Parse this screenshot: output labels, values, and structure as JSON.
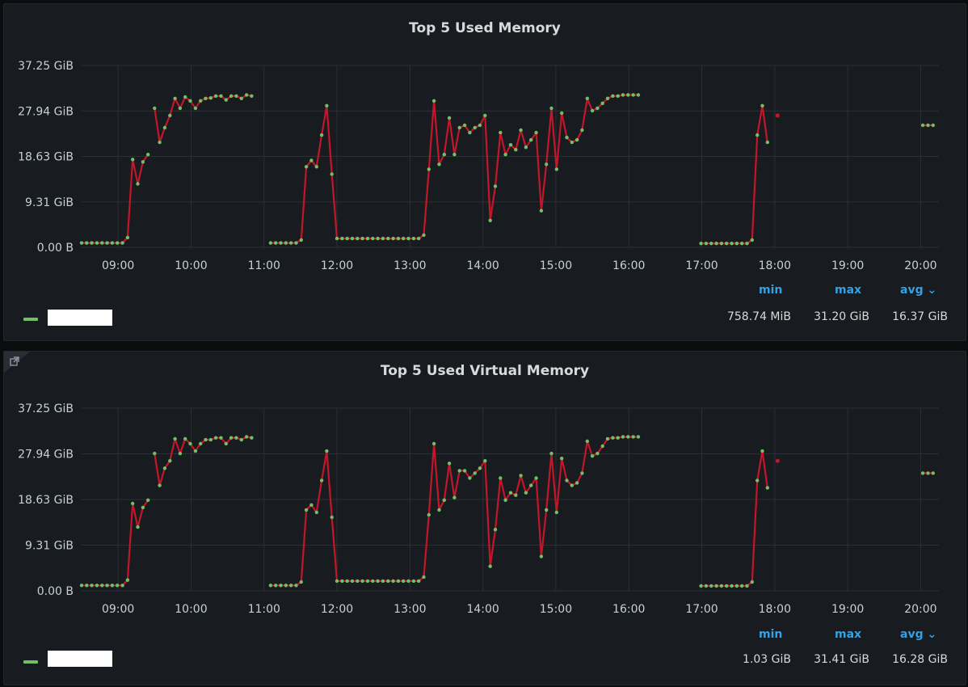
{
  "colors": {
    "line": "#c4162a",
    "point": "#73bf69",
    "grid": "#2c3035",
    "accent": "#33a2e5",
    "panel": "#181b1f"
  },
  "icons": {
    "panel_link": "external-link-icon",
    "avg_sort": "chevron-down-icon"
  },
  "panels": [
    {
      "title": "Top 5 Used Memory",
      "legend": {
        "headers": {
          "min": "min",
          "max": "max",
          "avg": "avg ⌄"
        },
        "values": {
          "min": "758.74 MiB",
          "max": "31.20 GiB",
          "avg": "16.37 GiB"
        },
        "series_name": ""
      }
    },
    {
      "title": "Top 5 Used Virtual Memory",
      "legend": {
        "headers": {
          "min": "min",
          "max": "max",
          "avg": "avg ⌄"
        },
        "values": {
          "min": "1.03 GiB",
          "max": "31.41 GiB",
          "avg": "16.28 GiB"
        },
        "series_name": ""
      }
    }
  ],
  "chart_data": [
    {
      "type": "line",
      "title": "Top 5 Used Memory",
      "x_ticks": [
        "09:00",
        "10:00",
        "11:00",
        "12:00",
        "13:00",
        "14:00",
        "15:00",
        "16:00",
        "17:00",
        "18:00",
        "19:00",
        "20:00"
      ],
      "y_ticks": [
        "0.00 B",
        "9.31 GiB",
        "18.63 GiB",
        "27.94 GiB",
        "37.25 GiB"
      ],
      "ylim": [
        0,
        37.25
      ],
      "x_unit": "hours",
      "grid": true,
      "legend_placement": "bottom",
      "segments": [
        [
          [
            8.5,
            0.9
          ],
          [
            8.57,
            0.9
          ],
          [
            8.64,
            0.9
          ],
          [
            8.71,
            0.9
          ],
          [
            8.78,
            0.9
          ],
          [
            8.85,
            0.9
          ],
          [
            8.92,
            0.9
          ],
          [
            8.99,
            0.9
          ],
          [
            9.06,
            0.9
          ],
          [
            9.13,
            2.0
          ],
          [
            9.2,
            18.0
          ],
          [
            9.27,
            13.0
          ],
          [
            9.34,
            17.5
          ],
          [
            9.41,
            19.0
          ]
        ],
        [
          [
            9.5,
            28.5
          ],
          [
            9.57,
            21.5
          ],
          [
            9.64,
            24.5
          ],
          [
            9.71,
            27.0
          ],
          [
            9.78,
            30.5
          ],
          [
            9.85,
            28.5
          ],
          [
            9.92,
            30.8
          ],
          [
            9.99,
            30.0
          ],
          [
            10.06,
            28.5
          ],
          [
            10.13,
            30.0
          ],
          [
            10.2,
            30.5
          ],
          [
            10.27,
            30.6
          ],
          [
            10.34,
            31.0
          ],
          [
            10.41,
            31.0
          ],
          [
            10.48,
            30.2
          ],
          [
            10.55,
            31.0
          ],
          [
            10.62,
            31.0
          ],
          [
            10.69,
            30.5
          ],
          [
            10.76,
            31.2
          ],
          [
            10.83,
            31.0
          ]
        ],
        [
          [
            11.09,
            0.9
          ],
          [
            11.16,
            0.9
          ],
          [
            11.23,
            0.9
          ],
          [
            11.3,
            0.9
          ],
          [
            11.37,
            0.9
          ],
          [
            11.44,
            0.9
          ],
          [
            11.51,
            1.5
          ],
          [
            11.58,
            16.5
          ],
          [
            11.65,
            17.8
          ],
          [
            11.72,
            16.5
          ],
          [
            11.79,
            23.0
          ],
          [
            11.86,
            29.0
          ],
          [
            11.93,
            15.0
          ],
          [
            12.0,
            1.8
          ],
          [
            12.07,
            1.8
          ],
          [
            12.14,
            1.8
          ],
          [
            12.21,
            1.8
          ],
          [
            12.28,
            1.8
          ],
          [
            12.35,
            1.8
          ],
          [
            12.42,
            1.8
          ],
          [
            12.49,
            1.8
          ],
          [
            12.56,
            1.8
          ],
          [
            12.63,
            1.8
          ],
          [
            12.7,
            1.8
          ],
          [
            12.77,
            1.8
          ],
          [
            12.84,
            1.8
          ],
          [
            12.91,
            1.8
          ],
          [
            12.98,
            1.8
          ],
          [
            13.05,
            1.8
          ],
          [
            13.12,
            1.8
          ],
          [
            13.19,
            2.5
          ],
          [
            13.26,
            16.0
          ],
          [
            13.33,
            30.0
          ],
          [
            13.4,
            17.0
          ],
          [
            13.47,
            19.0
          ],
          [
            13.54,
            26.5
          ],
          [
            13.61,
            19.0
          ],
          [
            13.68,
            24.5
          ],
          [
            13.75,
            25.0
          ],
          [
            13.82,
            23.5
          ],
          [
            13.89,
            24.5
          ],
          [
            13.96,
            25.0
          ],
          [
            14.03,
            27.0
          ],
          [
            14.1,
            5.5
          ],
          [
            14.17,
            12.5
          ],
          [
            14.24,
            23.5
          ],
          [
            14.31,
            19.0
          ],
          [
            14.38,
            21.0
          ],
          [
            14.45,
            20.0
          ],
          [
            14.52,
            24.0
          ],
          [
            14.59,
            20.5
          ],
          [
            14.66,
            22.0
          ],
          [
            14.73,
            23.5
          ],
          [
            14.8,
            7.5
          ],
          [
            14.87,
            17.0
          ],
          [
            14.94,
            28.5
          ],
          [
            15.01,
            16.0
          ],
          [
            15.08,
            27.5
          ],
          [
            15.15,
            22.5
          ],
          [
            15.22,
            21.5
          ],
          [
            15.29,
            22.0
          ],
          [
            15.36,
            24.0
          ],
          [
            15.43,
            30.5
          ],
          [
            15.5,
            28.0
          ],
          [
            15.57,
            28.5
          ],
          [
            15.64,
            29.5
          ],
          [
            15.71,
            30.5
          ],
          [
            15.78,
            31.0
          ],
          [
            15.85,
            31.0
          ],
          [
            15.92,
            31.2
          ],
          [
            15.99,
            31.2
          ],
          [
            16.06,
            31.2
          ],
          [
            16.13,
            31.2
          ]
        ],
        [
          [
            16.99,
            0.8
          ],
          [
            17.06,
            0.8
          ],
          [
            17.13,
            0.8
          ],
          [
            17.2,
            0.8
          ],
          [
            17.27,
            0.8
          ],
          [
            17.34,
            0.8
          ],
          [
            17.41,
            0.8
          ],
          [
            17.48,
            0.8
          ],
          [
            17.55,
            0.8
          ],
          [
            17.62,
            0.8
          ],
          [
            17.69,
            1.5
          ],
          [
            17.76,
            23.0
          ],
          [
            17.83,
            29.0
          ],
          [
            17.9,
            21.5
          ]
        ],
        [
          [
            18.04,
            27.0
          ]
        ],
        [
          [
            20.03,
            25.0
          ],
          [
            20.1,
            25.0
          ],
          [
            20.17,
            25.0
          ]
        ]
      ]
    },
    {
      "type": "line",
      "title": "Top 5 Used Virtual Memory",
      "x_ticks": [
        "09:00",
        "10:00",
        "11:00",
        "12:00",
        "13:00",
        "14:00",
        "15:00",
        "16:00",
        "17:00",
        "18:00",
        "19:00",
        "20:00"
      ],
      "y_ticks": [
        "0.00 B",
        "9.31 GiB",
        "18.63 GiB",
        "27.94 GiB",
        "37.25 GiB"
      ],
      "ylim": [
        0,
        37.25
      ],
      "x_unit": "hours",
      "grid": true,
      "legend_placement": "bottom",
      "segments": [
        [
          [
            8.5,
            1.1
          ],
          [
            8.57,
            1.1
          ],
          [
            8.64,
            1.1
          ],
          [
            8.71,
            1.1
          ],
          [
            8.78,
            1.1
          ],
          [
            8.85,
            1.1
          ],
          [
            8.92,
            1.1
          ],
          [
            8.99,
            1.1
          ],
          [
            9.06,
            1.1
          ],
          [
            9.13,
            2.2
          ],
          [
            9.2,
            17.8
          ],
          [
            9.27,
            13.0
          ],
          [
            9.34,
            17.0
          ],
          [
            9.41,
            18.5
          ]
        ],
        [
          [
            9.5,
            28.0
          ],
          [
            9.57,
            21.5
          ],
          [
            9.64,
            25.0
          ],
          [
            9.71,
            26.5
          ],
          [
            9.78,
            31.0
          ],
          [
            9.85,
            28.0
          ],
          [
            9.92,
            31.0
          ],
          [
            9.99,
            30.0
          ],
          [
            10.06,
            28.5
          ],
          [
            10.13,
            30.0
          ],
          [
            10.2,
            30.8
          ],
          [
            10.27,
            30.8
          ],
          [
            10.34,
            31.2
          ],
          [
            10.41,
            31.2
          ],
          [
            10.48,
            30.0
          ],
          [
            10.55,
            31.2
          ],
          [
            10.62,
            31.2
          ],
          [
            10.69,
            30.8
          ],
          [
            10.76,
            31.4
          ],
          [
            10.83,
            31.2
          ]
        ],
        [
          [
            11.09,
            1.1
          ],
          [
            11.16,
            1.1
          ],
          [
            11.23,
            1.1
          ],
          [
            11.3,
            1.1
          ],
          [
            11.37,
            1.1
          ],
          [
            11.44,
            1.1
          ],
          [
            11.51,
            1.8
          ],
          [
            11.58,
            16.5
          ],
          [
            11.65,
            17.5
          ],
          [
            11.72,
            16.0
          ],
          [
            11.79,
            22.5
          ],
          [
            11.86,
            28.5
          ],
          [
            11.93,
            15.0
          ],
          [
            12.0,
            2.0
          ],
          [
            12.07,
            2.0
          ],
          [
            12.14,
            2.0
          ],
          [
            12.21,
            2.0
          ],
          [
            12.28,
            2.0
          ],
          [
            12.35,
            2.0
          ],
          [
            12.42,
            2.0
          ],
          [
            12.49,
            2.0
          ],
          [
            12.56,
            2.0
          ],
          [
            12.63,
            2.0
          ],
          [
            12.7,
            2.0
          ],
          [
            12.77,
            2.0
          ],
          [
            12.84,
            2.0
          ],
          [
            12.91,
            2.0
          ],
          [
            12.98,
            2.0
          ],
          [
            13.05,
            2.0
          ],
          [
            13.12,
            2.0
          ],
          [
            13.19,
            2.8
          ],
          [
            13.26,
            15.5
          ],
          [
            13.33,
            30.0
          ],
          [
            13.4,
            16.5
          ],
          [
            13.47,
            18.5
          ],
          [
            13.54,
            26.0
          ],
          [
            13.61,
            19.0
          ],
          [
            13.68,
            24.5
          ],
          [
            13.75,
            24.5
          ],
          [
            13.82,
            23.0
          ],
          [
            13.89,
            24.0
          ],
          [
            13.96,
            25.0
          ],
          [
            14.03,
            26.5
          ],
          [
            14.1,
            5.0
          ],
          [
            14.17,
            12.5
          ],
          [
            14.24,
            23.0
          ],
          [
            14.31,
            18.5
          ],
          [
            14.38,
            20.0
          ],
          [
            14.45,
            19.5
          ],
          [
            14.52,
            23.5
          ],
          [
            14.59,
            20.0
          ],
          [
            14.66,
            21.5
          ],
          [
            14.73,
            23.0
          ],
          [
            14.8,
            7.0
          ],
          [
            14.87,
            16.5
          ],
          [
            14.94,
            28.0
          ],
          [
            15.01,
            16.0
          ],
          [
            15.08,
            27.0
          ],
          [
            15.15,
            22.5
          ],
          [
            15.22,
            21.5
          ],
          [
            15.29,
            22.0
          ],
          [
            15.36,
            24.0
          ],
          [
            15.43,
            30.5
          ],
          [
            15.5,
            27.5
          ],
          [
            15.57,
            28.0
          ],
          [
            15.64,
            29.5
          ],
          [
            15.71,
            31.0
          ],
          [
            15.78,
            31.2
          ],
          [
            15.85,
            31.2
          ],
          [
            15.92,
            31.4
          ],
          [
            15.99,
            31.4
          ],
          [
            16.06,
            31.4
          ],
          [
            16.13,
            31.4
          ]
        ],
        [
          [
            16.99,
            1.0
          ],
          [
            17.06,
            1.0
          ],
          [
            17.13,
            1.0
          ],
          [
            17.2,
            1.0
          ],
          [
            17.27,
            1.0
          ],
          [
            17.34,
            1.0
          ],
          [
            17.41,
            1.0
          ],
          [
            17.48,
            1.0
          ],
          [
            17.55,
            1.0
          ],
          [
            17.62,
            1.0
          ],
          [
            17.69,
            1.8
          ],
          [
            17.76,
            22.5
          ],
          [
            17.83,
            28.5
          ],
          [
            17.9,
            21.0
          ]
        ],
        [
          [
            18.04,
            26.5
          ]
        ],
        [
          [
            20.03,
            24.0
          ],
          [
            20.1,
            24.0
          ],
          [
            20.17,
            24.0
          ]
        ]
      ]
    }
  ]
}
